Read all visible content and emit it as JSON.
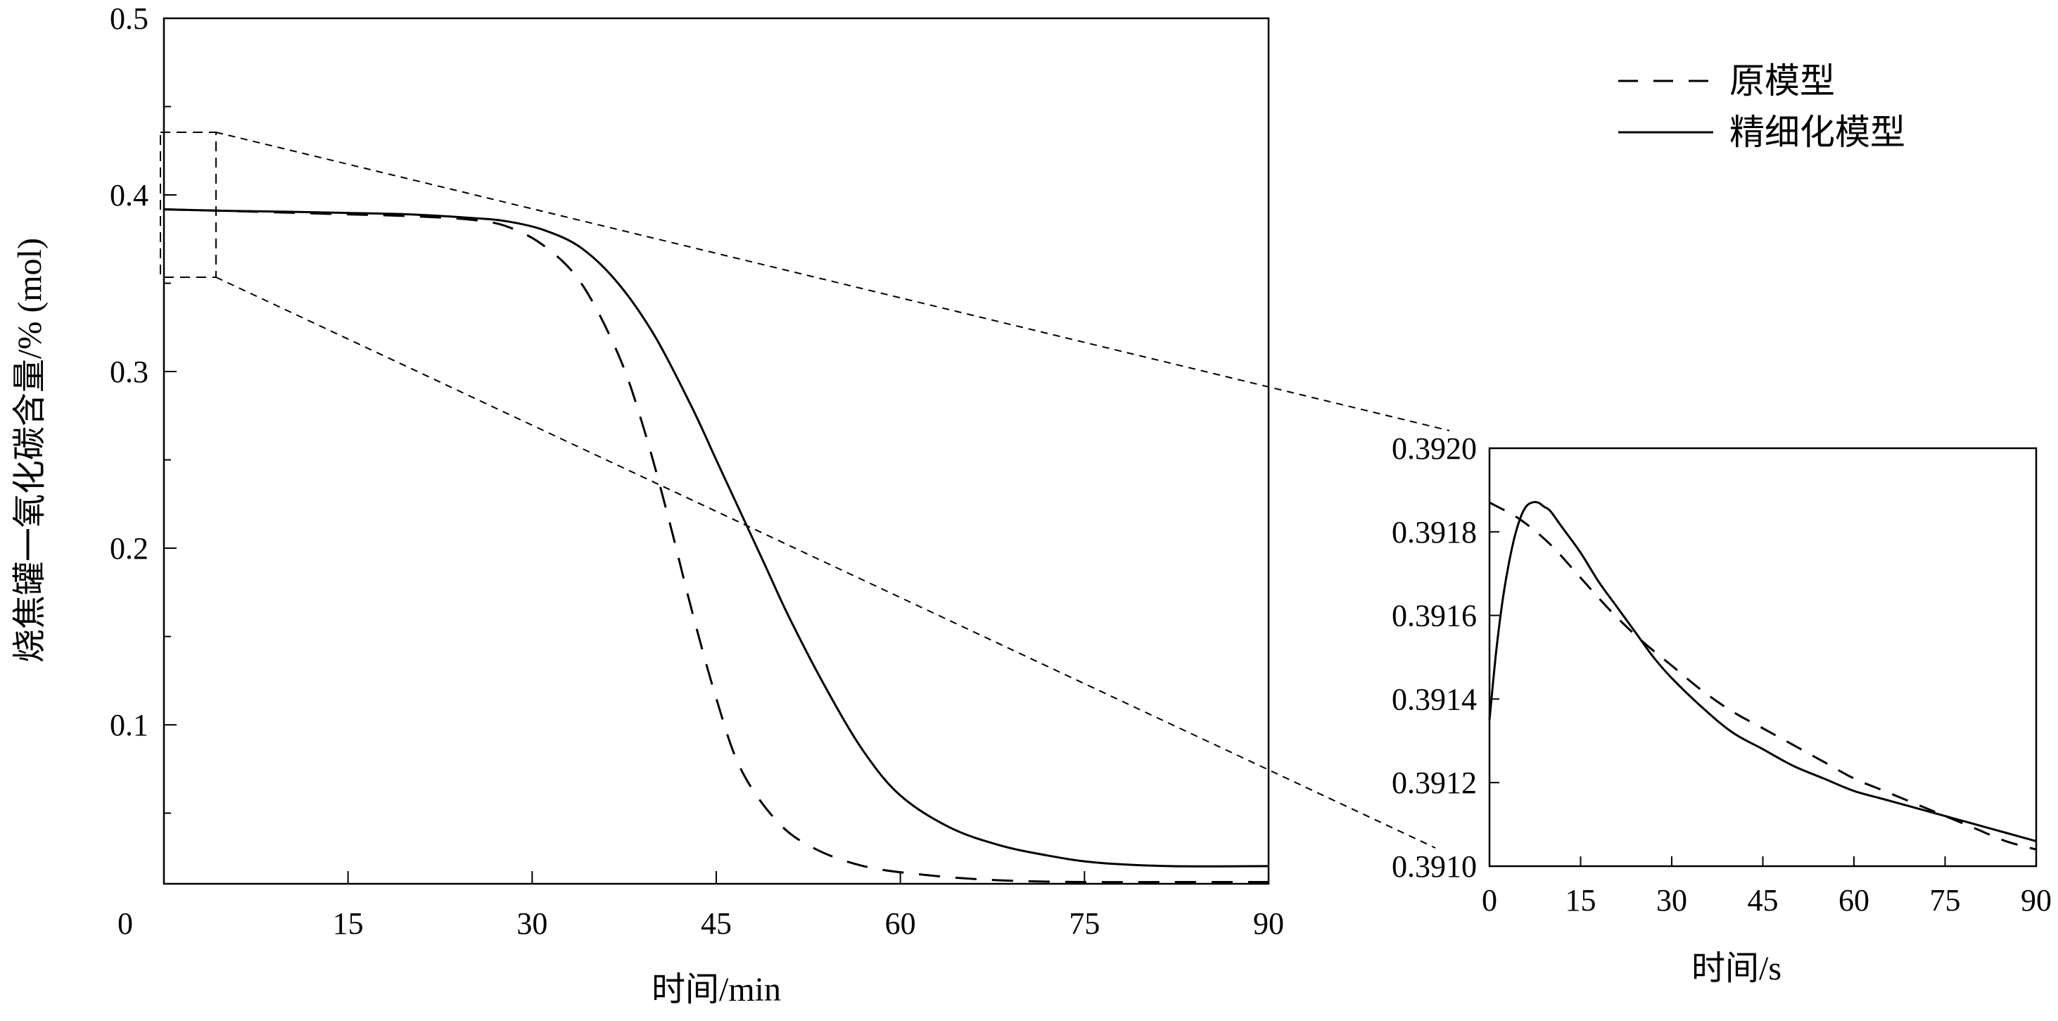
{
  "chart_data": [
    {
      "type": "line",
      "xlabel": "时间/min",
      "ylabel": "烧焦罐一氧化碳含量/% (mol)",
      "xlim": [
        0,
        90
      ],
      "ylim": [
        0.01,
        0.5
      ],
      "x_ticks": [
        "0",
        "15",
        "30",
        "45",
        "60",
        "75",
        "90"
      ],
      "y_ticks": [
        "0.1",
        "0.2",
        "0.3",
        "0.4",
        "0.5"
      ],
      "legend_position": "top-right",
      "series": [
        {
          "name": "原模型",
          "style": "dashed",
          "x": [
            0,
            5,
            10,
            15,
            20,
            25,
            28,
            31,
            34,
            37,
            39,
            41,
            43,
            45,
            47,
            50,
            53,
            57,
            62,
            68,
            75,
            82,
            90
          ],
          "y": [
            0.3918,
            0.391,
            0.39,
            0.389,
            0.388,
            0.386,
            0.382,
            0.371,
            0.35,
            0.31,
            0.27,
            0.22,
            0.165,
            0.115,
            0.075,
            0.045,
            0.03,
            0.02,
            0.015,
            0.012,
            0.011,
            0.011,
            0.011
          ]
        },
        {
          "name": "精细化模型",
          "style": "solid",
          "x": [
            0,
            5,
            10,
            15,
            20,
            25,
            28,
            31,
            34,
            37,
            40,
            43,
            45,
            47,
            49,
            51,
            54,
            57,
            60,
            64,
            68,
            72,
            76,
            82,
            90
          ],
          "y": [
            0.3919,
            0.391,
            0.3905,
            0.3898,
            0.389,
            0.387,
            0.385,
            0.38,
            0.37,
            0.35,
            0.32,
            0.28,
            0.25,
            0.22,
            0.19,
            0.16,
            0.12,
            0.085,
            0.06,
            0.042,
            0.032,
            0.026,
            0.022,
            0.02,
            0.02
          ]
        }
      ]
    },
    {
      "type": "line",
      "xlabel": "时间/s",
      "ylabel": "",
      "xlim": [
        0,
        90
      ],
      "ylim": [
        0.391,
        0.392
      ],
      "x_ticks": [
        "0",
        "15",
        "30",
        "45",
        "60",
        "75",
        "90"
      ],
      "y_ticks": [
        "0.3910",
        "0.3912",
        "0.3914",
        "0.3916",
        "0.3918",
        "0.3920"
      ],
      "series": [
        {
          "name": "原模型",
          "style": "dashed",
          "x": [
            0,
            5,
            10,
            15,
            20,
            25,
            30,
            35,
            40,
            45,
            50,
            55,
            60,
            65,
            70,
            75,
            80,
            85,
            90
          ],
          "y": [
            0.39187,
            0.39183,
            0.39177,
            0.39169,
            0.39161,
            0.39154,
            0.39148,
            0.39142,
            0.39137,
            0.39133,
            0.39129,
            0.39125,
            0.39121,
            0.39118,
            0.39115,
            0.39112,
            0.39109,
            0.39106,
            0.39104
          ]
        },
        {
          "name": "精细化模型",
          "style": "solid",
          "x": [
            0,
            1,
            2,
            3,
            4,
            5,
            6,
            7,
            8,
            9,
            10,
            12,
            15,
            18,
            21,
            24,
            27,
            30,
            35,
            40,
            45,
            50,
            55,
            60,
            65,
            70,
            75,
            80,
            85,
            90
          ],
          "y": [
            0.39135,
            0.3915,
            0.39162,
            0.39171,
            0.39178,
            0.39183,
            0.39186,
            0.39187,
            0.39187,
            0.39186,
            0.39185,
            0.39181,
            0.39175,
            0.39168,
            0.39162,
            0.39156,
            0.3915,
            0.39145,
            0.39138,
            0.39132,
            0.39128,
            0.39124,
            0.39121,
            0.39118,
            0.39116,
            0.39114,
            0.39112,
            0.3911,
            0.39108,
            0.39106
          ]
        }
      ]
    }
  ]
}
